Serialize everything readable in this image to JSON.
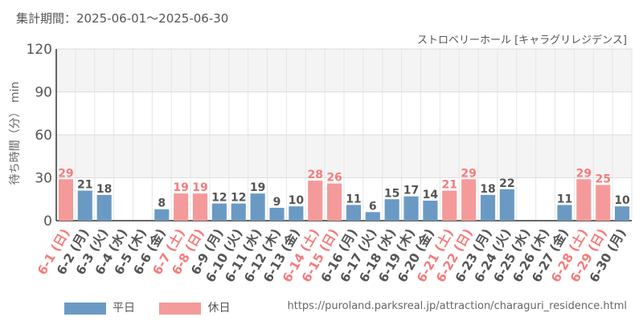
{
  "header": {
    "period": "集計期間：2025-06-01～2025-06-30",
    "subtitle": "ストロベリーホール [キャラグリレジデンス]"
  },
  "legend": {
    "weekday_label": "平日",
    "holiday_label": "休日"
  },
  "source_url": "https://puroland.parksreal.jp/attraction/charaguri_residence.html",
  "colors": {
    "weekday": "#6a9ac4",
    "holiday": "#f59a9a",
    "holiday_text": "#f47c7c",
    "text": "#555555",
    "band": "#f4f4f4",
    "grid": "#e6e6e6"
  },
  "chart_data": {
    "type": "bar",
    "ylabel": "待ち時間（分） min",
    "ylim": [
      0,
      120
    ],
    "yticks": [
      0,
      30,
      60,
      90,
      120
    ],
    "grid": true,
    "categories": [
      "6-1 (日)",
      "6-2 (月)",
      "6-3 (火)",
      "6-4 (水)",
      "6-5 (木)",
      "6-6 (金)",
      "6-7 (土)",
      "6-8 (日)",
      "6-9 (月)",
      "6-10 (火)",
      "6-11 (水)",
      "6-12 (木)",
      "6-13 (金)",
      "6-14 (土)",
      "6-15 (日)",
      "6-16 (月)",
      "6-17 (火)",
      "6-18 (水)",
      "6-19 (木)",
      "6-20 (金)",
      "6-21 (土)",
      "6-22 (日)",
      "6-23 (月)",
      "6-24 (火)",
      "6-25 (水)",
      "6-26 (木)",
      "6-27 (金)",
      "6-28 (土)",
      "6-29 (日)",
      "6-30 (月)"
    ],
    "values": [
      29,
      21,
      18,
      null,
      null,
      8,
      19,
      19,
      12,
      12,
      19,
      9,
      10,
      28,
      26,
      11,
      6,
      15,
      17,
      14,
      21,
      29,
      18,
      22,
      null,
      null,
      11,
      29,
      25,
      10
    ],
    "holiday": [
      true,
      false,
      false,
      false,
      false,
      false,
      true,
      true,
      false,
      false,
      false,
      false,
      false,
      true,
      true,
      false,
      false,
      false,
      false,
      false,
      true,
      true,
      false,
      false,
      false,
      false,
      false,
      true,
      true,
      false
    ]
  }
}
